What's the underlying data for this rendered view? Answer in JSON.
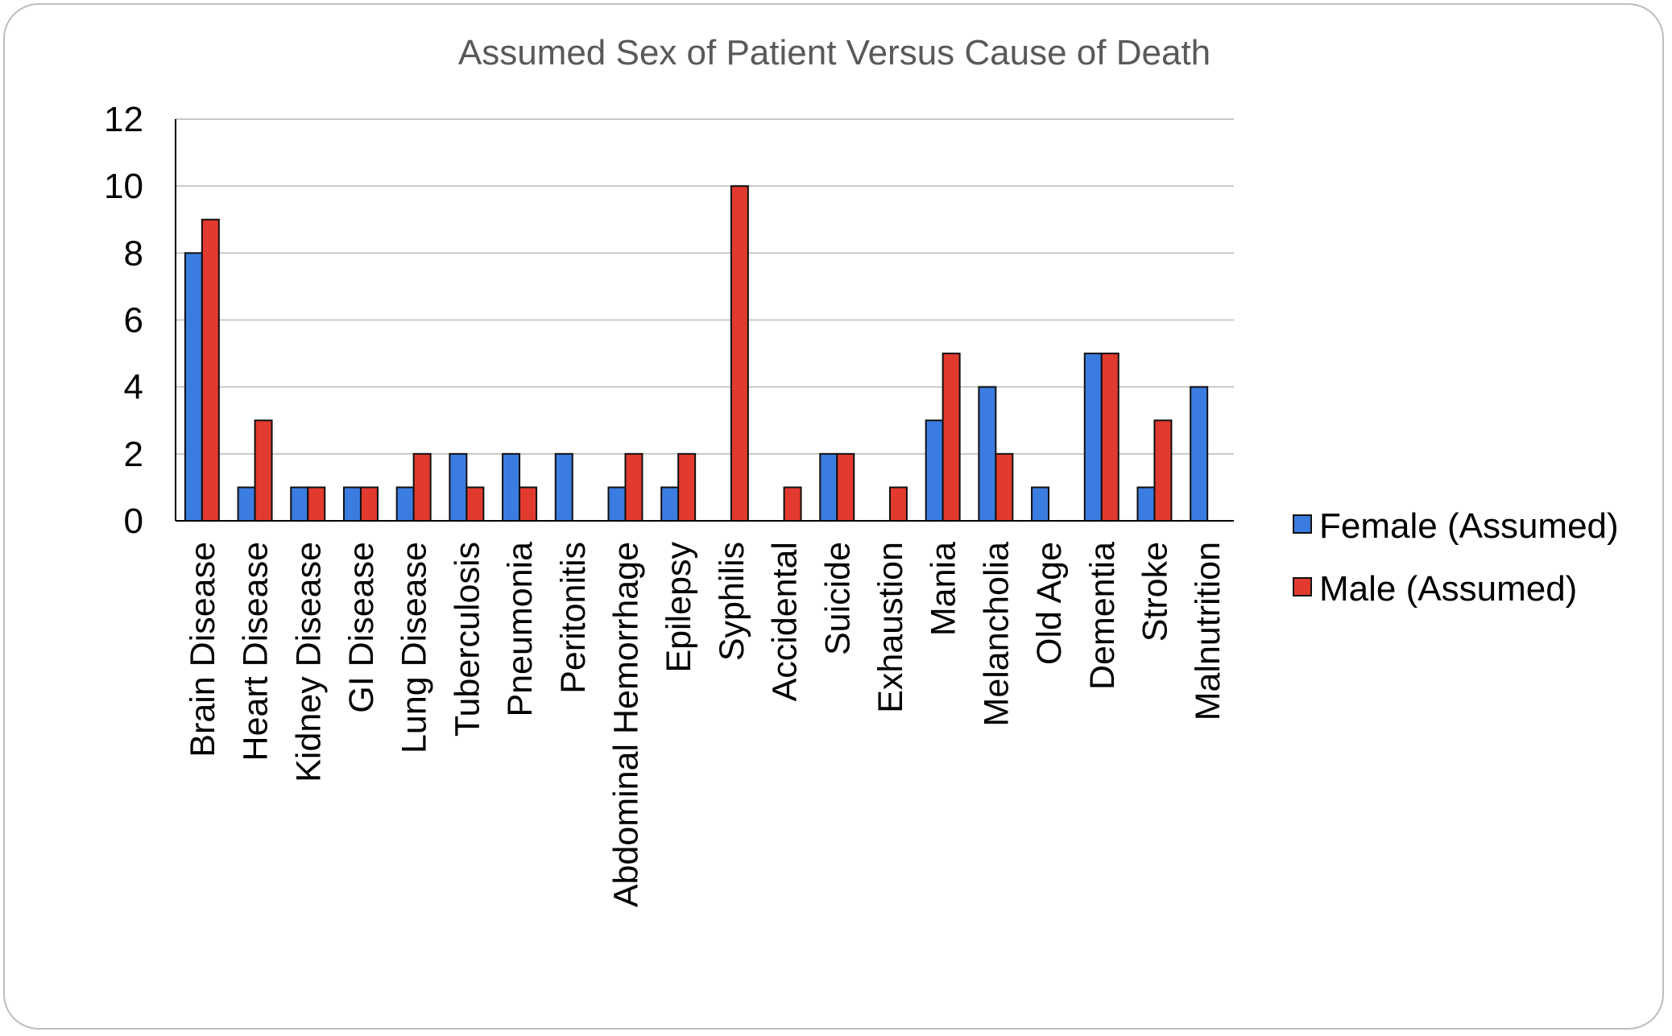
{
  "chart_data": {
    "type": "bar",
    "title": "Assumed Sex of Patient Versus Cause of Death",
    "xlabel": "",
    "ylabel": "",
    "ylim": [
      0,
      12
    ],
    "yticks": [
      0,
      2,
      4,
      6,
      8,
      10,
      12
    ],
    "grid": true,
    "legend_position": "right",
    "categories": [
      "Brain Disease",
      "Heart Disease",
      "Kidney Disease",
      "GI Disease",
      "Lung Disease",
      "Tuberculosis",
      "Pneumonia",
      "Peritonitis",
      "Abdominal Hemorrhage",
      "Epilepsy",
      "Syphilis",
      "Accidental",
      "Suicide",
      "Exhaustion",
      "Mania",
      "Melancholia",
      "Old Age",
      "Dementia",
      "Stroke",
      "Malnutrition"
    ],
    "series": [
      {
        "name": "Female (Assumed)",
        "color": "#3b7ce0",
        "values": [
          8,
          1,
          1,
          1,
          1,
          2,
          2,
          2,
          1,
          1,
          0,
          0,
          2,
          0,
          3,
          4,
          1,
          5,
          1,
          4
        ]
      },
      {
        "name": "Male (Assumed)",
        "color": "#e23a2e",
        "values": [
          9,
          3,
          1,
          1,
          2,
          1,
          1,
          0,
          2,
          2,
          10,
          1,
          2,
          1,
          5,
          2,
          0,
          5,
          3,
          0
        ]
      }
    ]
  }
}
